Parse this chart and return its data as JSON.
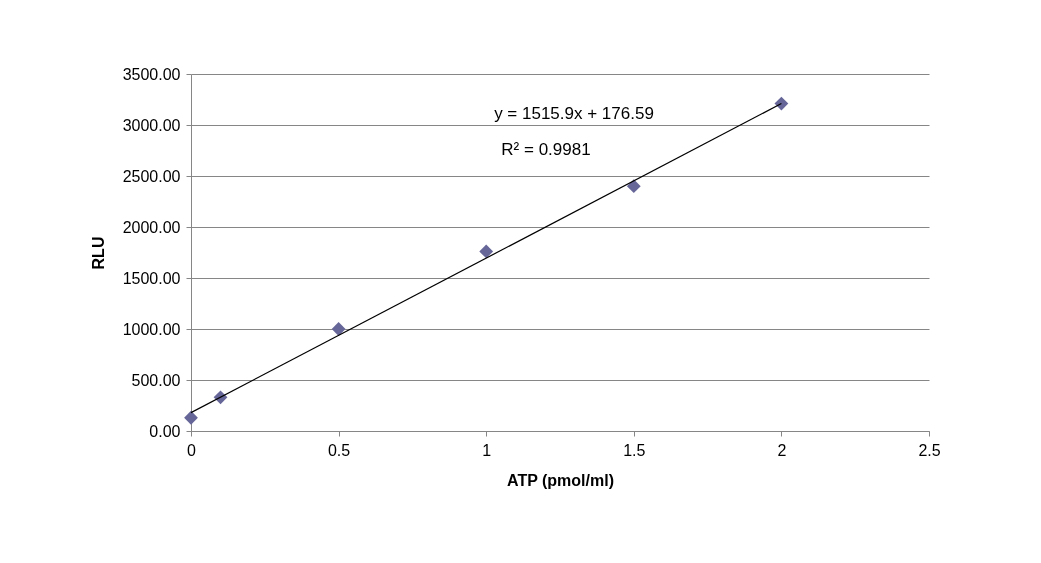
{
  "chart_data": {
    "type": "scatter",
    "xlabel": "ATP (pmol/ml)",
    "ylabel": "RLU",
    "xlim": [
      0,
      2.5
    ],
    "xticks": [
      0,
      0.5,
      1,
      1.5,
      2,
      2.5
    ],
    "ylim": [
      0,
      3500
    ],
    "yticks": [
      {
        "value": 0,
        "label": "0.00"
      },
      {
        "value": 500,
        "label": "500.00"
      },
      {
        "value": 1000,
        "label": "1000.00"
      },
      {
        "value": 1500,
        "label": "1500.00"
      },
      {
        "value": 2000,
        "label": "2000.00"
      },
      {
        "value": 2500,
        "label": "2500.00"
      },
      {
        "value": 3000,
        "label": "3000.00"
      },
      {
        "value": 3500,
        "label": "3500.00"
      }
    ],
    "grid": "y",
    "series": [
      {
        "color": "#666699",
        "marker": "diamond",
        "x": [
          0,
          0.1,
          0.5,
          1,
          1.5,
          2
        ],
        "values": [
          130,
          330,
          1000,
          1760,
          2400,
          3210
        ]
      },
      {
        "type": "line",
        "color": "#000000",
        "line_style": "solid",
        "x": [
          0,
          2
        ],
        "values": [
          180,
          3210
        ]
      }
    ],
    "annotations": [
      "y = 1515.9x + 176.59",
      "R² = 0.9981"
    ]
  }
}
